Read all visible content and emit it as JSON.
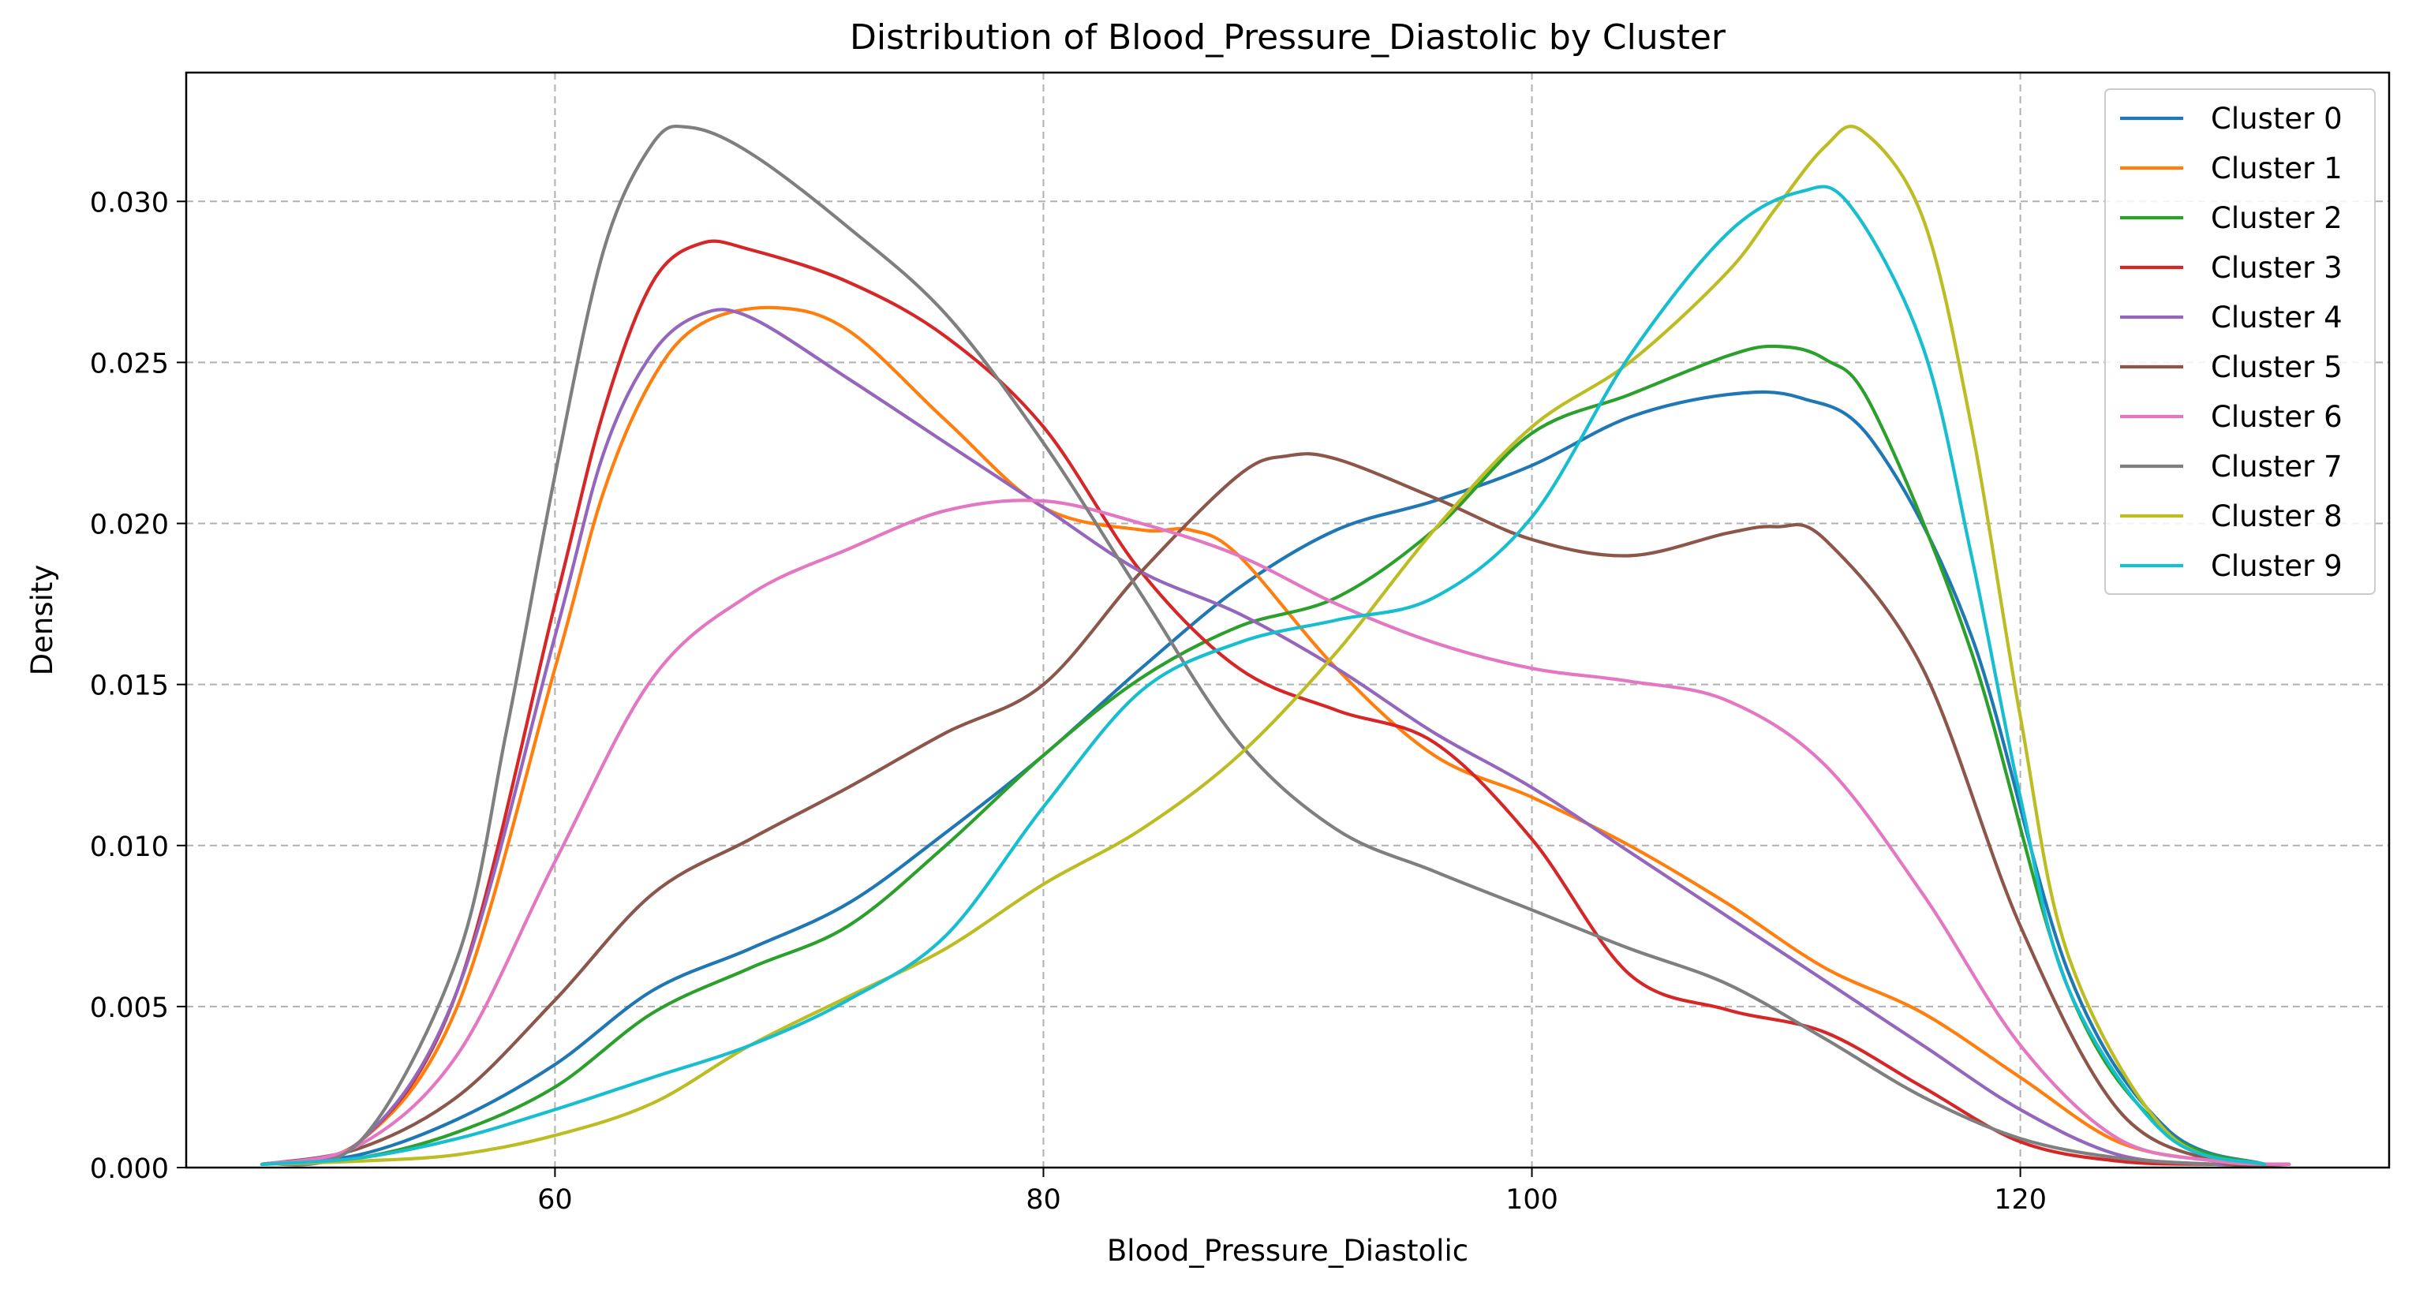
{
  "chart_data": {
    "type": "line",
    "title": "Distribution of Blood_Pressure_Diastolic by Cluster",
    "xlabel": "Blood_Pressure_Diastolic",
    "ylabel": "Density",
    "xlim": [
      44.9,
      135.1
    ],
    "ylim": [
      0.0,
      0.034
    ],
    "x_ticks": [
      60,
      80,
      100,
      120
    ],
    "y_ticks": [
      0.0,
      0.005,
      0.01,
      0.015,
      0.02,
      0.025,
      0.03
    ],
    "y_tick_labels": [
      "0.000",
      "0.005",
      "0.010",
      "0.015",
      "0.020",
      "0.025",
      "0.030"
    ],
    "grid": true,
    "legend_position": "top-right",
    "series": [
      {
        "name": "Cluster 0",
        "color": "#1f77b4",
        "x": [
          48,
          52,
          56,
          60,
          64,
          68,
          72,
          76,
          80,
          84,
          88,
          92,
          96,
          100,
          104,
          108,
          111,
          114,
          118,
          122,
          126,
          130
        ],
        "y": [
          0.0001,
          0.0004,
          0.0015,
          0.0032,
          0.0055,
          0.0068,
          0.0082,
          0.0104,
          0.0128,
          0.0155,
          0.018,
          0.0198,
          0.0207,
          0.0218,
          0.0233,
          0.024,
          0.0239,
          0.0225,
          0.0165,
          0.006,
          0.0012,
          0.0001
        ]
      },
      {
        "name": "Cluster 1",
        "color": "#ff7f0e",
        "x": [
          48,
          52,
          56,
          60,
          62,
          64,
          66,
          69,
          72,
          76,
          80,
          84,
          86,
          88,
          92,
          96,
          100,
          104,
          108,
          112,
          116,
          120,
          124,
          128,
          131
        ],
        "y": [
          0.0001,
          0.0008,
          0.005,
          0.0155,
          0.021,
          0.0245,
          0.0262,
          0.0267,
          0.026,
          0.0232,
          0.0205,
          0.0198,
          0.0198,
          0.019,
          0.0155,
          0.0128,
          0.0115,
          0.01,
          0.0082,
          0.0062,
          0.0048,
          0.0028,
          0.0008,
          0.0002,
          0.0001
        ]
      },
      {
        "name": "Cluster 2",
        "color": "#2ca02c",
        "x": [
          48,
          52,
          56,
          60,
          64,
          68,
          72,
          76,
          80,
          84,
          88,
          92,
          96,
          100,
          104,
          108,
          110,
          112,
          114,
          118,
          122,
          126,
          130
        ],
        "y": [
          0.0001,
          0.0003,
          0.0011,
          0.0025,
          0.0048,
          0.0062,
          0.0075,
          0.01,
          0.0128,
          0.0152,
          0.0168,
          0.0177,
          0.0198,
          0.0228,
          0.024,
          0.0252,
          0.0255,
          0.0251,
          0.0235,
          0.016,
          0.0055,
          0.0011,
          0.0001
        ]
      },
      {
        "name": "Cluster 3",
        "color": "#d62728",
        "x": [
          48,
          52,
          56,
          60,
          62,
          64,
          66,
          68,
          72,
          76,
          80,
          84,
          88,
          92,
          96,
          100,
          104,
          108,
          112,
          116,
          120,
          124,
          128,
          131
        ],
        "y": [
          0.0001,
          0.0008,
          0.0055,
          0.0175,
          0.0235,
          0.0275,
          0.0287,
          0.0285,
          0.0275,
          0.0258,
          0.023,
          0.0185,
          0.0155,
          0.0142,
          0.0132,
          0.0102,
          0.006,
          0.0049,
          0.0042,
          0.0025,
          0.0008,
          0.0002,
          0.0001,
          0.0001
        ]
      },
      {
        "name": "Cluster 4",
        "color": "#9467bd",
        "x": [
          48,
          52,
          56,
          60,
          62,
          64,
          66,
          68,
          72,
          76,
          80,
          84,
          88,
          92,
          96,
          100,
          104,
          108,
          112,
          116,
          120,
          124,
          128,
          131
        ],
        "y": [
          0.0001,
          0.0008,
          0.0055,
          0.0165,
          0.0222,
          0.0253,
          0.0265,
          0.0264,
          0.0245,
          0.0225,
          0.0205,
          0.0185,
          0.0172,
          0.0155,
          0.0135,
          0.0118,
          0.0098,
          0.0078,
          0.0058,
          0.0038,
          0.0018,
          0.0004,
          0.0001,
          0.0001
        ]
      },
      {
        "name": "Cluster 5",
        "color": "#8c564b",
        "x": [
          48,
          52,
          56,
          60,
          64,
          68,
          72,
          76,
          80,
          84,
          88,
          90,
          92,
          96,
          100,
          104,
          108,
          110,
          112,
          116,
          120,
          124,
          128,
          131
        ],
        "y": [
          0.0001,
          0.0006,
          0.0022,
          0.0052,
          0.0085,
          0.0102,
          0.0118,
          0.0135,
          0.015,
          0.0185,
          0.0215,
          0.0221,
          0.022,
          0.0208,
          0.0195,
          0.019,
          0.0197,
          0.0199,
          0.0195,
          0.0155,
          0.0075,
          0.0018,
          0.0002,
          0.0001
        ]
      },
      {
        "name": "Cluster 6",
        "color": "#e377c2",
        "x": [
          48,
          52,
          56,
          60,
          64,
          68,
          72,
          76,
          80,
          84,
          88,
          92,
          96,
          100,
          104,
          108,
          112,
          116,
          120,
          124,
          128,
          131
        ],
        "y": [
          0.0001,
          0.0007,
          0.0035,
          0.0095,
          0.0152,
          0.0178,
          0.0192,
          0.0204,
          0.0207,
          0.02,
          0.019,
          0.0175,
          0.0163,
          0.0155,
          0.0151,
          0.0145,
          0.0125,
          0.0085,
          0.0038,
          0.0009,
          0.0002,
          0.0001
        ]
      },
      {
        "name": "Cluster 7",
        "color": "#7f7f7f",
        "x": [
          48,
          52,
          56,
          58,
          60,
          62,
          64,
          65.5,
          68,
          72,
          76,
          80,
          84,
          88,
          92,
          96,
          100,
          104,
          108,
          112,
          116,
          120,
          124,
          128
        ],
        "y": [
          0.0001,
          0.0008,
          0.0065,
          0.0135,
          0.0215,
          0.0285,
          0.0318,
          0.0323,
          0.0315,
          0.0292,
          0.0265,
          0.0225,
          0.0178,
          0.0132,
          0.0105,
          0.0092,
          0.008,
          0.0068,
          0.0057,
          0.004,
          0.0022,
          0.0009,
          0.0003,
          0.0001
        ]
      },
      {
        "name": "Cluster 8",
        "color": "#bcbd22",
        "x": [
          48,
          52,
          56,
          60,
          64,
          68,
          72,
          76,
          80,
          84,
          88,
          92,
          96,
          100,
          104,
          108,
          110,
          112,
          113.5,
          116,
          118,
          120,
          122,
          126,
          130
        ],
        "y": [
          0.0001,
          0.0002,
          0.0004,
          0.001,
          0.002,
          0.0038,
          0.0053,
          0.0068,
          0.0088,
          0.0105,
          0.0128,
          0.016,
          0.0198,
          0.023,
          0.025,
          0.0278,
          0.0298,
          0.0317,
          0.0322,
          0.0295,
          0.023,
          0.014,
          0.0065,
          0.0011,
          0.0001
        ]
      },
      {
        "name": "Cluster 9",
        "color": "#17becf",
        "x": [
          48,
          52,
          56,
          60,
          64,
          68,
          72,
          76,
          80,
          84,
          88,
          92,
          96,
          100,
          104,
          108,
          111,
          113,
          116,
          118,
          120,
          122,
          126,
          130
        ],
        "y": [
          0.0001,
          0.0003,
          0.0009,
          0.0018,
          0.0028,
          0.0038,
          0.0052,
          0.0072,
          0.0112,
          0.0148,
          0.0163,
          0.017,
          0.0177,
          0.0202,
          0.0252,
          0.029,
          0.0303,
          0.0299,
          0.0255,
          0.019,
          0.0115,
          0.0055,
          0.001,
          0.0001
        ]
      }
    ]
  }
}
